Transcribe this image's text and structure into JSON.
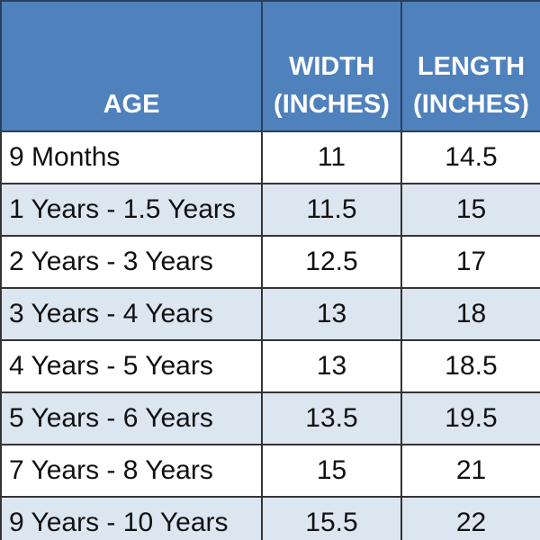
{
  "table": {
    "header": [
      [
        "AGE"
      ],
      [
        "WIDTH",
        "(INCHES)"
      ],
      [
        "LENGTH",
        "(INCHES)"
      ]
    ],
    "rows": [
      [
        "9 Months",
        "11",
        "14.5"
      ],
      [
        "1 Years - 1.5 Years",
        "11.5",
        "15"
      ],
      [
        "2 Years - 3 Years",
        "12.5",
        "17"
      ],
      [
        "3 Years - 4 Years",
        "13",
        "18"
      ],
      [
        "4 Years - 5 Years",
        "13",
        "18.5"
      ],
      [
        "5 Years - 6 Years",
        "13.5",
        "19.5"
      ],
      [
        "7 Years - 8 Years",
        "15",
        "21"
      ],
      [
        "9 Years - 10 Years",
        "15.5",
        "22"
      ]
    ]
  }
}
